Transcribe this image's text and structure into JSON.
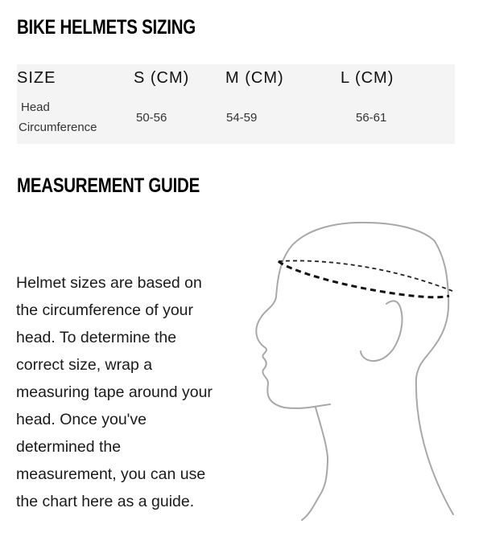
{
  "title": "BIKE HELMETS SIZING",
  "table": {
    "headers": [
      "SIZE",
      "S (CM)",
      "M (CM)",
      "L (CM)"
    ],
    "row": {
      "label_line1": "Head",
      "label_line2": "Circumference",
      "values": [
        "50-56",
        "54-59",
        "56-61"
      ]
    }
  },
  "guide": {
    "title": "MEASUREMENT GUIDE",
    "text": "Helmet sizes are based on the circumference of your head. To determine the correct size, wrap a measuring tape around your head. Once you've determined the measurement, you can use the chart here as a guide."
  }
}
